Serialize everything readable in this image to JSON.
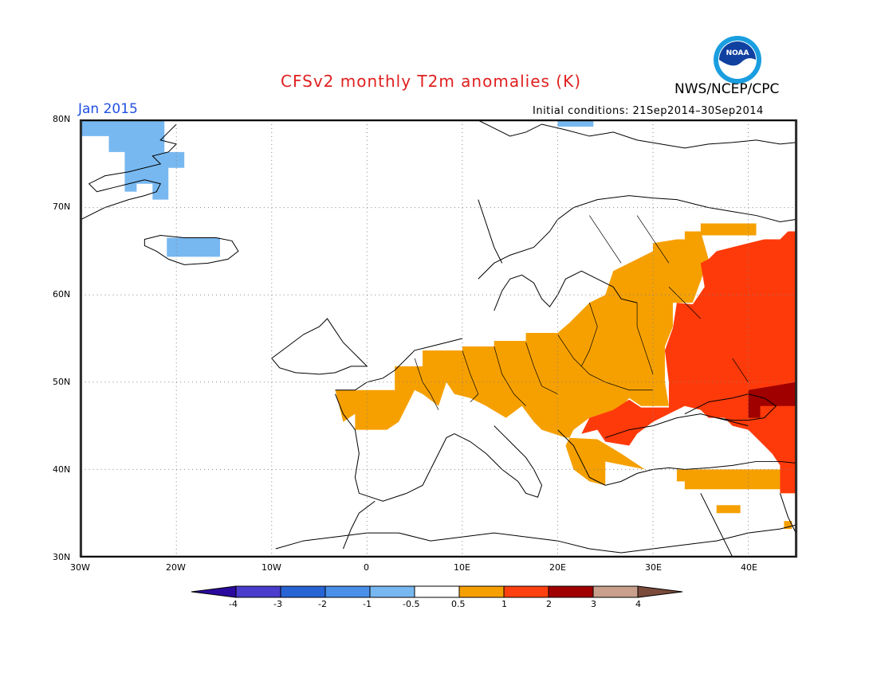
{
  "header": {
    "title": "CFSv2 monthly T2m anomalies (K)",
    "agency": "NWS/NCEP/CPC",
    "valid_month": "Jan 2015",
    "initial_conditions": "Initial conditions: 21Sep2014–30Sep2014",
    "logo_text": "NOAA"
  },
  "axes": {
    "lat_labels": [
      "80N",
      "70N",
      "60N",
      "50N",
      "40N",
      "30N"
    ],
    "lon_labels": [
      "30W",
      "20W",
      "10W",
      "0",
      "10E",
      "20E",
      "30E",
      "40E"
    ],
    "lat_range": [
      30,
      80
    ],
    "lon_range": [
      -30,
      45
    ],
    "grid": "dotted"
  },
  "colorbar": {
    "labels": [
      "-4",
      "-3",
      "-2",
      "-1",
      "-0.5",
      "0.5",
      "1",
      "2",
      "3",
      "4"
    ],
    "colors": [
      "#2a0a9e",
      "#4a3ccc",
      "#2864d4",
      "#4a90e8",
      "#78b8f0",
      "#ffffff",
      "#f6a000",
      "#ff4010",
      "#a00000",
      "#c8a08c",
      "#7a4a3a"
    ]
  },
  "colors": {
    "orange": "#f6a000",
    "red": "#ff3a0a",
    "darkred": "#a00000",
    "lightblue": "#78b8f0",
    "title_red": "#e02020",
    "date_blue": "#2050e0"
  },
  "anomaly_regions": [
    {
      "name": "arctic-west-light-blue",
      "class": "-1 to -0.5"
    },
    {
      "name": "iceland-light-blue",
      "class": "-1 to -0.5"
    },
    {
      "name": "svalbard-light-blue",
      "class": "-1 to -0.5"
    },
    {
      "name": "europe-orange",
      "class": "0.5 to 1"
    },
    {
      "name": "russia-red",
      "class": "1 to 2"
    },
    {
      "name": "black-sea-darkred",
      "class": "2 to 3"
    }
  ]
}
